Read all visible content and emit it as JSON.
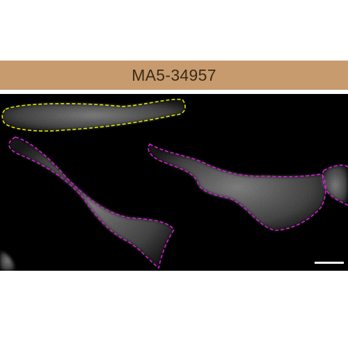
{
  "title": "MA5-34957",
  "colors": {
    "title_bar": "#c79b6e",
    "title_text": "#3a2a1a",
    "rule": "#ffffff",
    "panel_background": "#000000",
    "outline_primary": "#e3e600",
    "outline_secondary": "#d21fd2",
    "scale_bar": "#ffffff",
    "cell_signal": "#bfbfbf"
  },
  "panel": {
    "type": "fluorescence micrograph",
    "outlined_cells": [
      {
        "outline_color": "yellow",
        "style": "dashed"
      },
      {
        "outline_color": "magenta",
        "style": "dashed"
      },
      {
        "outline_color": "magenta",
        "style": "dashed"
      },
      {
        "outline_color": "magenta",
        "style": "dashed"
      }
    ],
    "scale_bar_present": true
  }
}
